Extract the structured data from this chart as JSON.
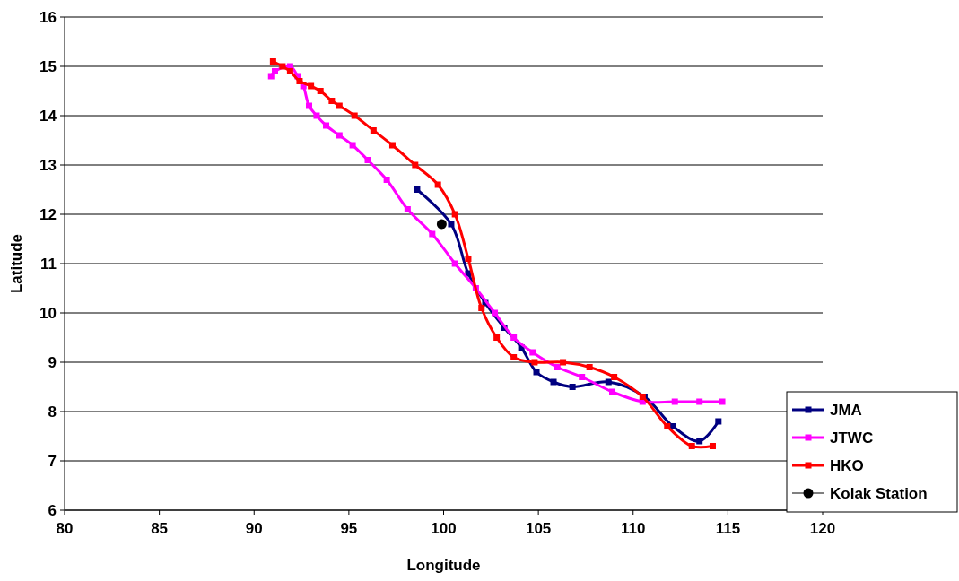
{
  "chart_data": {
    "type": "line",
    "xlabel": "Longitude",
    "ylabel": "Latitude",
    "xlim": [
      80,
      120
    ],
    "xticks": [
      80,
      85,
      90,
      95,
      100,
      105,
      110,
      115,
      120
    ],
    "ylim": [
      6,
      16
    ],
    "yticks": [
      6,
      7,
      8,
      9,
      10,
      11,
      12,
      13,
      14,
      15,
      16
    ],
    "grid": "y",
    "legend": "bottom right",
    "marker": "square",
    "series": [
      {
        "name": "JMA",
        "color": "#000080",
        "x": [
          98.6,
          100.4,
          101.3,
          102.2,
          103.2,
          104.1,
          104.9,
          105.8,
          106.8,
          108.7,
          110.6,
          112.1,
          113.5,
          114.5
        ],
        "values": [
          12.5,
          11.8,
          10.8,
          10.2,
          9.7,
          9.3,
          8.8,
          8.6,
          8.5,
          8.6,
          8.3,
          7.7,
          7.4,
          7.8
        ]
      },
      {
        "name": "JTWC",
        "color": "#ff00ff",
        "x": [
          90.9,
          91.1,
          91.9,
          92.3,
          92.6,
          92.9,
          93.3,
          93.8,
          94.5,
          95.2,
          96.0,
          97.0,
          98.1,
          99.4,
          100.6,
          101.7,
          102.7,
          103.7,
          104.7,
          106.0,
          107.3,
          108.9,
          110.5,
          112.2,
          113.5,
          114.7
        ],
        "values": [
          14.8,
          14.9,
          15.0,
          14.8,
          14.6,
          14.2,
          14.0,
          13.8,
          13.6,
          13.4,
          13.1,
          12.7,
          12.1,
          11.6,
          11.0,
          10.5,
          10.0,
          9.5,
          9.2,
          8.9,
          8.7,
          8.4,
          8.2,
          8.2,
          8.2,
          8.2
        ]
      },
      {
        "name": "HKO",
        "color": "#ff0000",
        "x": [
          91.0,
          91.5,
          91.9,
          92.4,
          93.0,
          93.5,
          94.1,
          94.5,
          95.3,
          96.3,
          97.3,
          98.5,
          99.7,
          100.6,
          101.3,
          102.0,
          102.8,
          103.7,
          104.8,
          106.3,
          107.7,
          109.0,
          110.5,
          111.8,
          113.1,
          114.2
        ],
        "values": [
          15.1,
          15.0,
          14.9,
          14.7,
          14.6,
          14.5,
          14.3,
          14.2,
          14.0,
          13.7,
          13.4,
          13.0,
          12.6,
          12.0,
          11.1,
          10.1,
          9.5,
          9.1,
          9.0,
          9.0,
          8.9,
          8.7,
          8.3,
          7.7,
          7.3,
          7.3
        ]
      },
      {
        "name": "Kolak Station",
        "color": "#000000",
        "type": "scatter",
        "marker": "circle",
        "x": [
          99.9
        ],
        "values": [
          11.8
        ]
      }
    ]
  }
}
